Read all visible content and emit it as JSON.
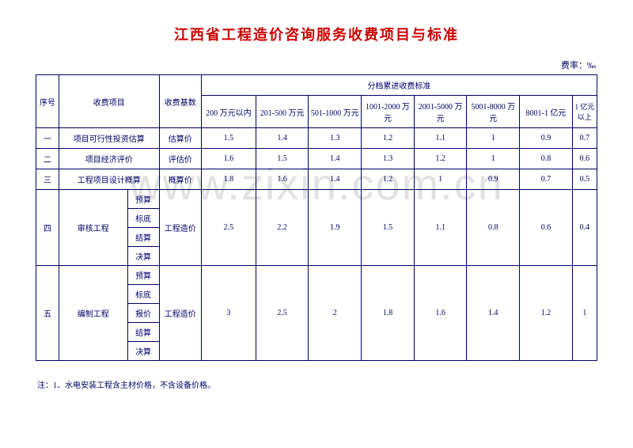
{
  "title_color": "#cc0000",
  "text_color": "#000066",
  "border_color": "#000066",
  "watermark_color": "#e2e2e2",
  "title": "江西省工程造价咨询服务收费项目与标准",
  "rate_label": "费率：‰",
  "watermark": "www.zixin.com.cn",
  "headers": {
    "seq": "序号",
    "item": "收费项目",
    "base": "收费基数",
    "tier_group": "分档累进收费标准",
    "tiers": [
      "200 万元以内",
      "201-500 万元",
      "501-1000 万元",
      "1001-2000 万元",
      "2001-5000 万元",
      "5001-8000 万元",
      "8001-1 亿元",
      "1 亿元以上"
    ]
  },
  "rows_simple": [
    {
      "seq": "一",
      "item": "项目可行性投资估算",
      "base": "估算价",
      "values": [
        "1.5",
        "1.4",
        "1.3",
        "1.2",
        "1.1",
        "1",
        "0.9",
        "0.7"
      ]
    },
    {
      "seq": "二",
      "item": "项目经济评价",
      "base": "评估价",
      "values": [
        "1.6",
        "1.5",
        "1.4",
        "1.3",
        "1.2",
        "1",
        "0.8",
        "0.6"
      ]
    },
    {
      "seq": "三",
      "item": "工程项目设计概算",
      "base": "概算价",
      "values": [
        "1.8",
        "1.6",
        "1.4",
        "1.2",
        "1",
        "0.9",
        "0.7",
        "0.5"
      ]
    }
  ],
  "row4": {
    "seq": "四",
    "item": "审核工程",
    "subtypes": [
      "预算",
      "标底",
      "结算",
      "决算"
    ],
    "base": "工程造价",
    "values": [
      "2.5",
      "2.2",
      "1.9",
      "1.5",
      "1.1",
      "0.8",
      "0.6",
      "0.4"
    ]
  },
  "row5": {
    "seq": "五",
    "item": "编制工程",
    "subtypes": [
      "预算",
      "标底",
      "报价",
      "结算",
      "决算"
    ],
    "base": "工程造价",
    "values": [
      "3",
      "2.5",
      "2",
      "1.8",
      "1.6",
      "1.4",
      "1.2",
      "1"
    ]
  },
  "footnote": "注：1、水电安装工程含主材价格，不含设备价格。"
}
